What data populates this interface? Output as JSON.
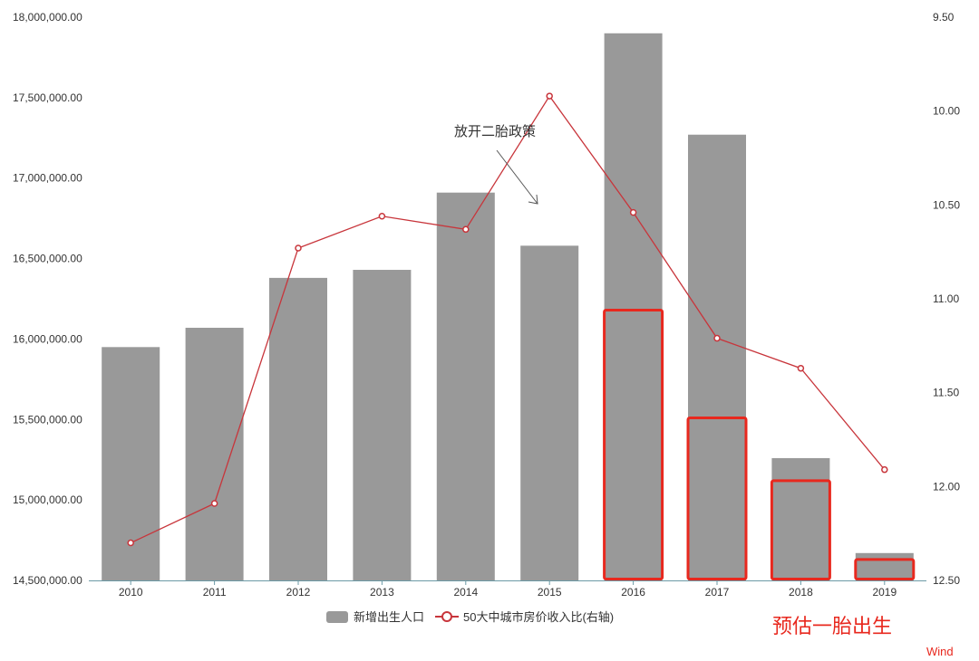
{
  "chart_data": {
    "type": "bar",
    "categories": [
      "2010",
      "2011",
      "2012",
      "2013",
      "2014",
      "2015",
      "2016",
      "2017",
      "2018",
      "2019"
    ],
    "series": [
      {
        "name": "新增出生人口",
        "type": "bar",
        "axis": "left",
        "color": "#999999",
        "values": [
          15950000,
          16070000,
          16380000,
          16430000,
          16910000,
          16580000,
          17900000,
          17270000,
          15260000,
          14670000
        ]
      },
      {
        "name": "50大中城市房价收入比(右轴)",
        "type": "line",
        "axis": "right",
        "color": "#c8353b",
        "values": [
          12.3,
          12.09,
          10.73,
          10.56,
          10.63,
          9.92,
          10.54,
          11.21,
          11.37,
          11.91
        ]
      }
    ],
    "highlight_series": {
      "label": "预估一胎出生",
      "color": "#e8281e",
      "categories": [
        "2016",
        "2017",
        "2018",
        "2019"
      ],
      "values": [
        16180000,
        15510000,
        15120000,
        14630000
      ]
    },
    "y_left": {
      "ylim": [
        14500000,
        18000000
      ],
      "ticks": [
        "14,500,000.00",
        "15,000,000.00",
        "15,500,000.00",
        "16,000,000.00",
        "16,500,000.00",
        "17,000,000.00",
        "17,500,000.00",
        "18,000,000.00"
      ]
    },
    "y_right": {
      "ylim": [
        9.5,
        12.5
      ],
      "inverted": true,
      "ticks": [
        "9.50",
        "10.00",
        "10.50",
        "11.00",
        "11.50",
        "12.00",
        "12.50"
      ]
    },
    "annotation": {
      "text": "放开二胎政策",
      "points_to": "2015"
    },
    "legend": {
      "position": "bottom-center",
      "bar_label": "新增出生人口",
      "line_label": "50大中城市房价收入比(右轴)"
    },
    "grid": false,
    "source_mark": "Wind"
  }
}
